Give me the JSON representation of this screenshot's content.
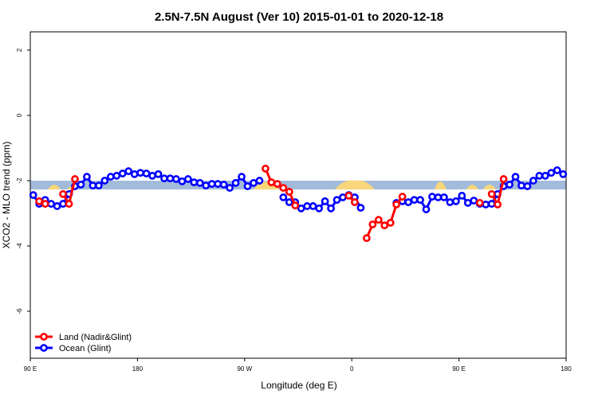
{
  "chart_data": {
    "type": "line",
    "title": "2.5N-7.5N August (Ver 10)   2015-01-01 to 2020-12-18",
    "x_label": "Longitude (deg E)",
    "y_label": "XCO2 - MLO trend (ppm)",
    "xlim": [
      -270,
      180
    ],
    "ylim": [
      -7.44,
      2.56
    ],
    "xticks": [
      {
        "value": -270,
        "label": "90 E"
      },
      {
        "value": -180,
        "label": "180"
      },
      {
        "value": -90,
        "label": "90 W"
      },
      0,
      {
        "value": 90,
        "label": "90 E"
      },
      180
    ],
    "yticks": [
      -6,
      -4,
      -2,
      0,
      2
    ],
    "grid": false,
    "legend": "bottom-left",
    "x": [
      -267.5,
      -262.5,
      -257.5,
      -252.5,
      -247.5,
      -242.5,
      -237.5,
      -232.5,
      -227.5,
      -222.5,
      -217.5,
      -212.5,
      -207.5,
      -202.5,
      -197.5,
      -192.5,
      -187.5,
      -182.5,
      -177.5,
      -172.5,
      -167.5,
      -162.5,
      -157.5,
      -152.5,
      -147.5,
      -142.5,
      -137.5,
      -132.5,
      -127.5,
      -122.5,
      -117.5,
      -112.5,
      -107.5,
      -102.5,
      -97.5,
      -92.5,
      -87.5,
      -82.5,
      -77.5,
      -72.5,
      -67.5,
      -62.5,
      -57.5,
      -52.5,
      -47.5,
      -42.5,
      -37.5,
      -32.5,
      -27.5,
      -22.5,
      -17.5,
      -12.5,
      -7.5,
      -2.5,
      2.5,
      7.5,
      12.5,
      17.5,
      22.5,
      27.5,
      32.5,
      37.5,
      42.5,
      47.5,
      52.5,
      57.5,
      62.5,
      67.5,
      72.5,
      77.5,
      82.5,
      87.5,
      92.5,
      97.5,
      102.5,
      107.5,
      112.5,
      117.5,
      122.5,
      127.5,
      132.5,
      137.5,
      142.5,
      147.5,
      152.5,
      157.5,
      162.5,
      167.5,
      172.5,
      177.5
    ],
    "series": [
      {
        "name": "Ocean (Glint)",
        "color": "#0000ff",
        "values": [
          -2.44,
          -2.71,
          -2.59,
          -2.71,
          -2.78,
          -2.71,
          -2.41,
          -2.17,
          -2.12,
          -1.88,
          -2.15,
          -2.15,
          -2.0,
          -1.88,
          -1.85,
          -1.78,
          -1.71,
          -1.8,
          -1.76,
          -1.78,
          -1.85,
          -1.8,
          -1.93,
          -1.93,
          -1.95,
          -2.02,
          -1.95,
          -2.05,
          -2.07,
          -2.15,
          -2.1,
          -2.1,
          -2.12,
          -2.22,
          -2.07,
          -1.88,
          -2.17,
          -2.07,
          -2.0,
          null,
          null,
          null,
          -2.51,
          -2.66,
          -2.66,
          -2.85,
          -2.78,
          -2.78,
          -2.85,
          -2.63,
          -2.85,
          -2.59,
          -2.51,
          -2.44,
          -2.51,
          -2.83,
          null,
          null,
          null,
          null,
          null,
          -2.68,
          -2.63,
          -2.66,
          -2.59,
          -2.59,
          -2.88,
          -2.49,
          -2.51,
          -2.51,
          -2.66,
          -2.63,
          -2.46,
          -2.68,
          -2.61,
          -2.71,
          -2.73,
          -2.71,
          -2.41,
          -2.17,
          -2.12,
          -1.88,
          -2.15,
          -2.17,
          -2.0,
          -1.85,
          -1.85,
          -1.76,
          -1.68,
          -1.8
        ]
      },
      {
        "name": "Land (Nadir&Glint)",
        "color": "#ff0000",
        "values": [
          null,
          -2.63,
          -2.71,
          null,
          null,
          -2.41,
          -2.71,
          -1.95,
          null,
          null,
          null,
          null,
          null,
          null,
          null,
          null,
          null,
          null,
          null,
          null,
          null,
          null,
          null,
          null,
          null,
          null,
          null,
          null,
          null,
          null,
          null,
          null,
          null,
          null,
          null,
          null,
          null,
          null,
          null,
          -1.63,
          -2.05,
          -2.1,
          -2.22,
          -2.34,
          -2.76,
          null,
          null,
          null,
          null,
          null,
          null,
          null,
          null,
          -2.46,
          -2.66,
          null,
          -3.76,
          -3.34,
          -3.2,
          -3.37,
          -3.29,
          -2.73,
          -2.49,
          null,
          null,
          null,
          null,
          null,
          null,
          null,
          null,
          null,
          null,
          null,
          null,
          -2.68,
          null,
          -2.41,
          -2.73,
          -1.95,
          null,
          null,
          null,
          null,
          null,
          null,
          null,
          null,
          null,
          null
        ]
      }
    ]
  }
}
